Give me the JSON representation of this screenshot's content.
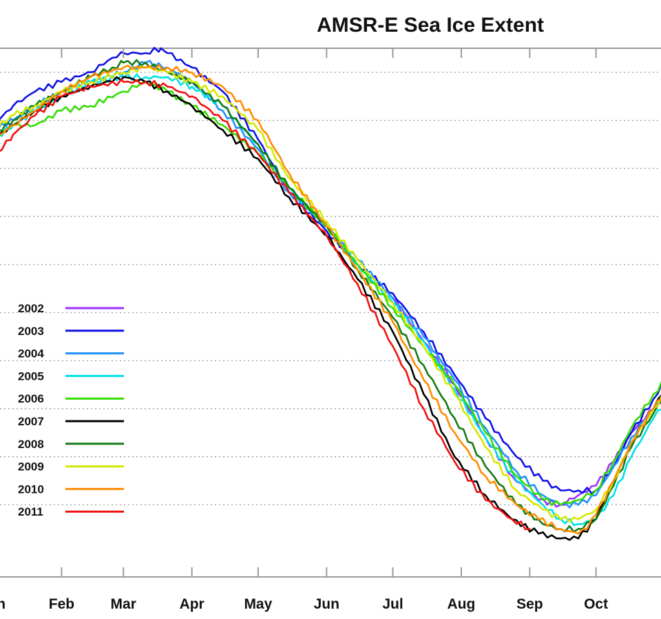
{
  "chart_data": {
    "type": "line",
    "title": "AMSR-E Sea Ice Extent",
    "xlabel": "",
    "ylabel": "",
    "x_unit": "day of year",
    "xlim": [
      1,
      305
    ],
    "ylim": [
      3.5,
      14.5
    ],
    "gridlines_y": [
      5,
      6,
      7,
      8,
      9,
      10,
      11,
      12,
      13,
      14
    ],
    "categories": [
      "Jan",
      "Feb",
      "Mar",
      "Apr",
      "May",
      "Jun",
      "Jul",
      "Aug",
      "Sep",
      "Oct"
    ],
    "category_days": [
      1,
      32,
      60,
      91,
      121,
      152,
      182,
      213,
      244,
      274
    ],
    "legend_position": "left",
    "series": [
      {
        "name": "2002",
        "color": "#9b30ff",
        "x": [
          182,
          196,
          210,
          224,
          236,
          248,
          258,
          266,
          274,
          282,
          290,
          300,
          305
        ],
        "y": [
          9.3,
          8.4,
          7.5,
          6.4,
          5.6,
          5.1,
          5.0,
          5.2,
          5.4,
          5.9,
          6.5,
          7.0,
          7.2
        ]
      },
      {
        "name": "2003",
        "color": "#1010e6",
        "x": [
          1,
          10,
          20,
          32,
          45,
          55,
          60,
          70,
          77,
          80,
          91,
          105,
          121,
          135,
          152,
          166,
          182,
          196,
          210,
          224,
          238,
          250,
          258,
          266,
          274,
          282,
          290,
          300,
          305
        ],
        "y": [
          12.9,
          13.3,
          13.6,
          13.8,
          14.0,
          14.3,
          14.4,
          14.4,
          14.5,
          14.4,
          14.1,
          13.6,
          12.6,
          11.5,
          10.7,
          10.0,
          9.4,
          8.6,
          7.7,
          6.8,
          6.0,
          5.5,
          5.3,
          5.3,
          5.3,
          5.8,
          6.5,
          7.2,
          7.6
        ]
      },
      {
        "name": "2004",
        "color": "#1e90ff",
        "x": [
          1,
          10,
          20,
          32,
          45,
          60,
          70,
          80,
          91,
          105,
          121,
          135,
          152,
          166,
          182,
          196,
          210,
          224,
          238,
          250,
          258,
          266,
          274,
          282,
          290,
          300,
          305
        ],
        "y": [
          12.8,
          13.0,
          13.3,
          13.6,
          13.8,
          14.0,
          14.2,
          14.1,
          13.8,
          13.2,
          12.4,
          11.5,
          10.8,
          10.1,
          9.3,
          8.5,
          7.6,
          6.6,
          5.7,
          5.2,
          5.0,
          5.0,
          5.2,
          5.8,
          6.4,
          7.0,
          7.3
        ]
      },
      {
        "name": "2005",
        "color": "#00e0e8",
        "x": [
          1,
          10,
          20,
          32,
          45,
          60,
          70,
          80,
          91,
          105,
          121,
          135,
          152,
          166,
          182,
          196,
          210,
          224,
          238,
          250,
          258,
          266,
          274,
          282,
          290,
          300,
          305
        ],
        "y": [
          12.6,
          12.9,
          13.2,
          13.5,
          13.8,
          13.9,
          13.9,
          13.9,
          13.7,
          13.3,
          12.5,
          11.6,
          10.8,
          10.0,
          9.2,
          8.4,
          7.4,
          6.4,
          5.5,
          5.0,
          4.7,
          4.6,
          4.7,
          5.2,
          6.0,
          6.8,
          7.1
        ]
      },
      {
        "name": "2006",
        "color": "#33dd00",
        "x": [
          1,
          10,
          20,
          32,
          45,
          60,
          70,
          80,
          91,
          105,
          121,
          135,
          152,
          166,
          182,
          196,
          210,
          224,
          238,
          250,
          258,
          266,
          274,
          282,
          290,
          300,
          305
        ],
        "y": [
          12.6,
          12.9,
          12.9,
          13.2,
          13.3,
          13.6,
          13.8,
          13.6,
          13.3,
          12.9,
          12.3,
          11.6,
          10.8,
          10.0,
          9.1,
          8.3,
          7.5,
          6.5,
          5.6,
          5.1,
          5.0,
          5.1,
          5.3,
          5.9,
          6.6,
          7.3,
          7.6
        ]
      },
      {
        "name": "2007",
        "color": "#000000",
        "x": [
          1,
          10,
          20,
          32,
          45,
          60,
          70,
          80,
          91,
          105,
          121,
          135,
          152,
          166,
          182,
          196,
          210,
          224,
          236,
          248,
          258,
          266,
          274,
          282,
          290,
          300,
          305
        ],
        "y": [
          12.6,
          12.9,
          13.2,
          13.5,
          13.7,
          13.9,
          13.8,
          13.6,
          13.3,
          12.8,
          12.2,
          11.4,
          10.6,
          9.7,
          8.6,
          7.3,
          6.0,
          5.2,
          4.7,
          4.4,
          4.3,
          4.3,
          4.7,
          5.5,
          6.3,
          7.0,
          7.4
        ]
      },
      {
        "name": "2008",
        "color": "#157a15",
        "x": [
          1,
          10,
          20,
          32,
          45,
          55,
          60,
          70,
          80,
          91,
          105,
          121,
          135,
          152,
          166,
          182,
          196,
          210,
          224,
          238,
          250,
          258,
          266,
          274,
          282,
          290,
          300,
          305
        ],
        "y": [
          12.7,
          13.0,
          13.3,
          13.6,
          13.9,
          14.1,
          14.2,
          14.2,
          14.0,
          13.8,
          13.3,
          12.5,
          11.6,
          10.8,
          9.9,
          8.9,
          7.9,
          6.8,
          5.8,
          5.0,
          4.6,
          4.5,
          4.5,
          4.7,
          5.4,
          6.2,
          6.9,
          7.3
        ]
      },
      {
        "name": "2009",
        "color": "#d4e800",
        "x": [
          1,
          10,
          20,
          32,
          45,
          60,
          70,
          80,
          91,
          105,
          121,
          135,
          152,
          166,
          182,
          196,
          210,
          224,
          238,
          250,
          258,
          266,
          274,
          282,
          290,
          300,
          305
        ],
        "y": [
          12.8,
          13.1,
          13.3,
          13.6,
          13.8,
          14.0,
          14.1,
          14.0,
          13.8,
          13.5,
          12.8,
          11.8,
          10.9,
          10.1,
          9.2,
          8.3,
          7.3,
          6.2,
          5.3,
          4.9,
          4.7,
          4.7,
          4.9,
          5.5,
          6.3,
          7.0,
          7.3
        ]
      },
      {
        "name": "2010",
        "color": "#ff8c00",
        "x": [
          1,
          10,
          20,
          32,
          45,
          60,
          70,
          80,
          91,
          105,
          121,
          135,
          152,
          166,
          182,
          196,
          210,
          224,
          238,
          248,
          258,
          266,
          270,
          274,
          282,
          290,
          300,
          305
        ],
        "y": [
          12.6,
          12.9,
          13.2,
          13.6,
          13.9,
          14.1,
          14.1,
          14.1,
          14.0,
          13.7,
          13.0,
          11.9,
          10.8,
          9.9,
          8.8,
          7.6,
          6.5,
          5.6,
          5.0,
          4.7,
          4.5,
          4.4,
          4.5,
          4.8,
          5.5,
          6.3,
          7.0,
          7.3
        ]
      },
      {
        "name": "2011",
        "color": "#ee1111",
        "x": [
          1,
          10,
          20,
          32,
          45,
          60,
          70,
          80,
          91,
          105,
          121,
          135,
          152,
          166,
          182,
          196,
          210,
          224,
          236,
          244
        ],
        "y": [
          12.2,
          12.7,
          13.1,
          13.5,
          13.7,
          13.8,
          13.8,
          13.7,
          13.5,
          13.0,
          12.3,
          11.5,
          10.6,
          9.6,
          8.3,
          7.0,
          5.9,
          5.1,
          4.7,
          4.5
        ]
      }
    ]
  }
}
